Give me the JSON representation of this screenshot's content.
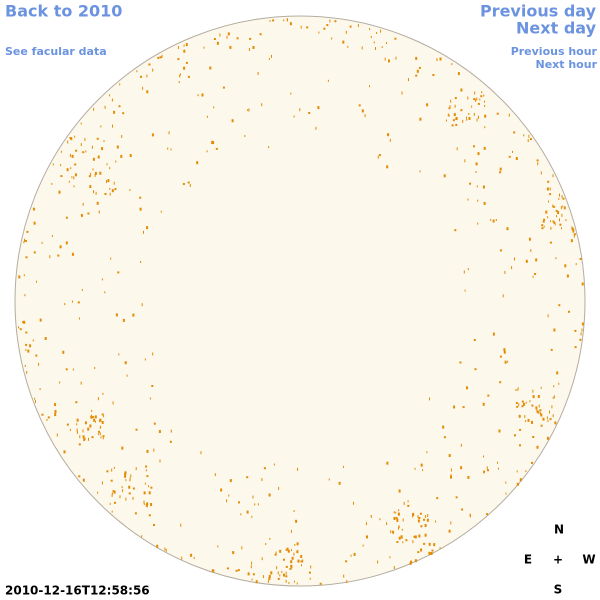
{
  "links": {
    "back": "Back to 2010",
    "facular": "See facular data",
    "previous_day": "Previous day",
    "next_day": "Next day",
    "previous_hour": "Previous hour",
    "next_hour": "Next hour"
  },
  "timestamp": "2010-12-16T12:58:56",
  "compass": {
    "north": "N",
    "east": "E",
    "center": "+",
    "west": "W",
    "south": "S"
  }
}
